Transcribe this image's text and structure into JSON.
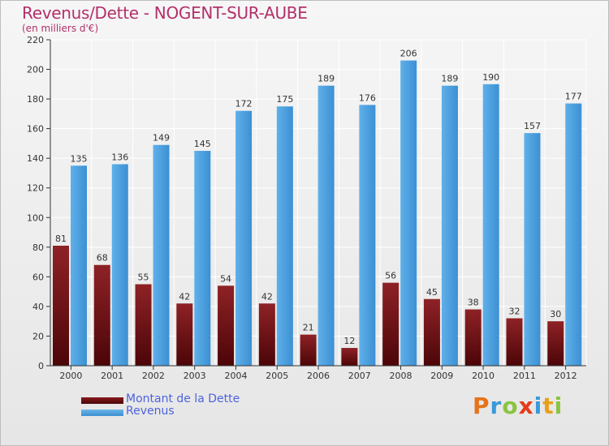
{
  "header": {
    "title": "Revenus/Dette - NOGENT-SUR-AUBE",
    "subtitle": "(en milliers d'€)"
  },
  "logo": {
    "letters": [
      "P",
      "r",
      "o",
      "x",
      "i",
      "t",
      "i"
    ],
    "colors": [
      "#e6731b",
      "#3a9ad9",
      "#8ac43f",
      "#e63a1b",
      "#3a9ad9",
      "#e6a11b",
      "#8ac43f"
    ]
  },
  "colors": {
    "dette": "#6e0d10",
    "revenus": "#4fa3e0",
    "grid": "#ffffff",
    "axis": "#333333"
  },
  "chart_data": {
    "type": "bar",
    "title": "Revenus/Dette - NOGENT-SUR-AUBE",
    "subtitle": "(en milliers d'€)",
    "xlabel": "",
    "ylabel": "",
    "categories": [
      "2000",
      "2001",
      "2002",
      "2003",
      "2004",
      "2005",
      "2006",
      "2007",
      "2008",
      "2009",
      "2010",
      "2011",
      "2012"
    ],
    "series": [
      {
        "name": "Montant de la Dette",
        "values": [
          81,
          68,
          55,
          42,
          54,
          42,
          21,
          12,
          56,
          45,
          38,
          32,
          30
        ]
      },
      {
        "name": "Revenus",
        "values": [
          135,
          136,
          149,
          145,
          172,
          175,
          189,
          176,
          206,
          189,
          190,
          157,
          177
        ]
      }
    ],
    "ylim": [
      0,
      220
    ],
    "yticks": [
      0,
      20,
      40,
      60,
      80,
      100,
      120,
      140,
      160,
      180,
      200,
      220
    ],
    "grid": true,
    "legend_position": "bottom-left"
  }
}
